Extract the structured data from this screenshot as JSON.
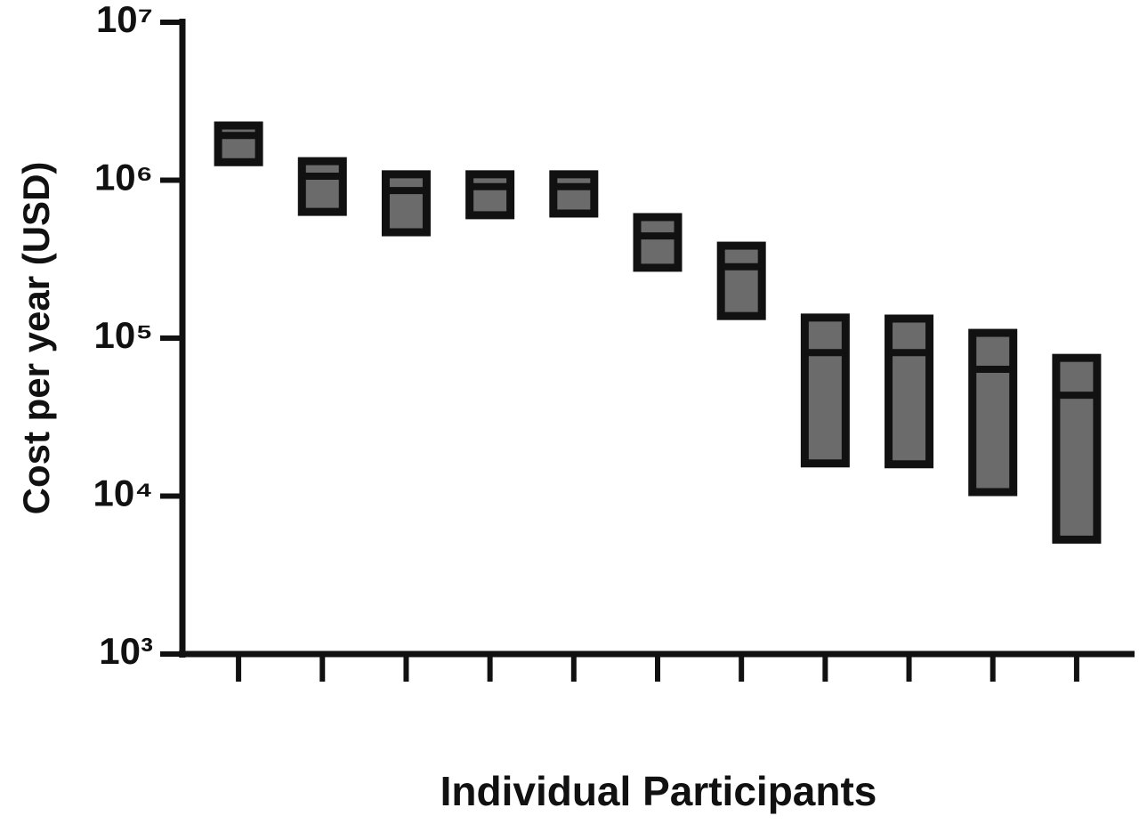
{
  "chart_data": {
    "type": "range-bar",
    "y_label": "Cost per year (USD)",
    "x_label": "Individual  Participants",
    "categories": [
      null,
      null,
      null,
      null,
      null,
      null,
      null,
      null,
      null,
      null,
      null
    ],
    "high": [
      2220000,
      1320000,
      1090000,
      1090000,
      1090000,
      584000,
      385000,
      135000,
      133000,
      108000,
      75000
    ],
    "median": [
      1920000,
      1060000,
      860000,
      910000,
      910000,
      444000,
      283000,
      81000,
      81000,
      63500,
      43500
    ],
    "low": [
      1300000,
      630000,
      468000,
      600000,
      615000,
      279000,
      138000,
      16100,
      15900,
      10600,
      5300
    ],
    "color": "#6b6b6b",
    "edge_color": "#111111",
    "ylog": true,
    "ylim": [
      1000,
      10000000
    ],
    "yticks": [
      {
        "value": 1000,
        "label": "10³"
      },
      {
        "value": 10000,
        "label": "10⁴"
      },
      {
        "value": 100000,
        "label": "10⁵"
      },
      {
        "value": 1000000,
        "label": "10⁶"
      },
      {
        "value": 10000000,
        "label": "10⁷"
      }
    ]
  }
}
